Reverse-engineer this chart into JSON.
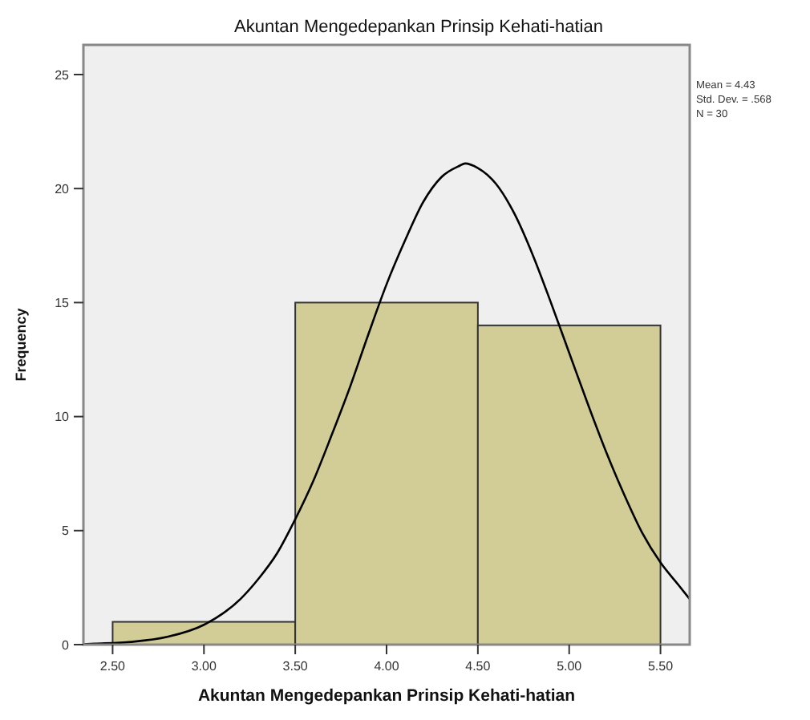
{
  "chart_data": {
    "type": "histogram",
    "title": "Akuntan Mengedepankan Prinsip Kehati-hatian",
    "xlabel": "Akuntan Mengedepankan Prinsip Kehati-hatian",
    "ylabel": "Frequency",
    "series": [
      {
        "bins": [
          2.5,
          3.5,
          4.5,
          5.5
        ],
        "values": [
          1,
          15,
          14
        ],
        "color": "#d2cd96"
      },
      {
        "type": "line",
        "color": "#000000",
        "x": [
          2.34,
          2.4,
          2.6,
          2.8,
          3.0,
          3.2,
          3.3,
          3.4,
          3.5,
          3.6,
          3.7,
          3.8,
          3.9,
          4.0,
          4.1,
          4.2,
          4.3,
          4.4,
          4.43,
          4.5,
          4.6,
          4.7,
          4.8,
          4.9,
          5.0,
          5.1,
          5.2,
          5.3,
          5.4,
          5.5,
          5.6,
          5.66
        ],
        "values": [
          0.02,
          0.04,
          0.12,
          0.34,
          0.87,
          2.0,
          2.9,
          4.0,
          5.5,
          7.2,
          9.2,
          11.3,
          13.6,
          15.8,
          17.7,
          19.4,
          20.5,
          21.0,
          21.1,
          20.9,
          20.2,
          18.9,
          17.1,
          15.0,
          12.8,
          10.6,
          8.5,
          6.6,
          4.9,
          3.6,
          2.6,
          2.0
        ]
      }
    ],
    "xlim": [
      2.34,
      5.66
    ],
    "ylim": [
      0,
      26.3
    ],
    "xticks": [
      {
        "value": 2.5,
        "label": "2.50"
      },
      {
        "value": 3,
        "label": "3.00"
      },
      {
        "value": 3.5,
        "label": "3.50"
      },
      {
        "value": 4,
        "label": "4.00"
      },
      {
        "value": 4.5,
        "label": "4.50"
      },
      {
        "value": 5,
        "label": "5.00"
      },
      {
        "value": 5.5,
        "label": "5.50"
      }
    ],
    "yticks": [
      0,
      5,
      10,
      15,
      20,
      25
    ],
    "annotations": [
      "Mean = 4.43",
      "Std. Dev. = .568",
      "N = 30"
    ],
    "grid": false
  }
}
